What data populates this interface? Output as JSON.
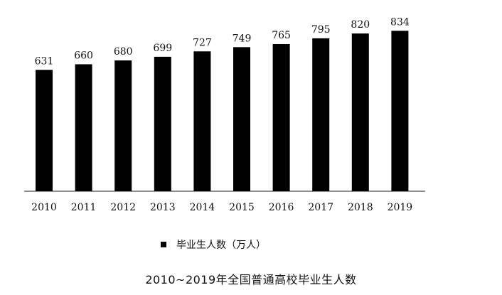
{
  "chart_data": {
    "type": "bar",
    "title": "2010~2019年全国普通高校毕业生人数",
    "categories": [
      "2010",
      "2011",
      "2012",
      "2013",
      "2014",
      "2015",
      "2016",
      "2017",
      "2018",
      "2019"
    ],
    "series": [
      {
        "name": "毕业生人数（万人）",
        "values": [
          631,
          660,
          680,
          699,
          727,
          749,
          765,
          795,
          820,
          834
        ]
      }
    ],
    "bar_color": "#000000",
    "ylim": [
      0,
      850
    ],
    "grid": false,
    "legend_position": "bottom"
  }
}
